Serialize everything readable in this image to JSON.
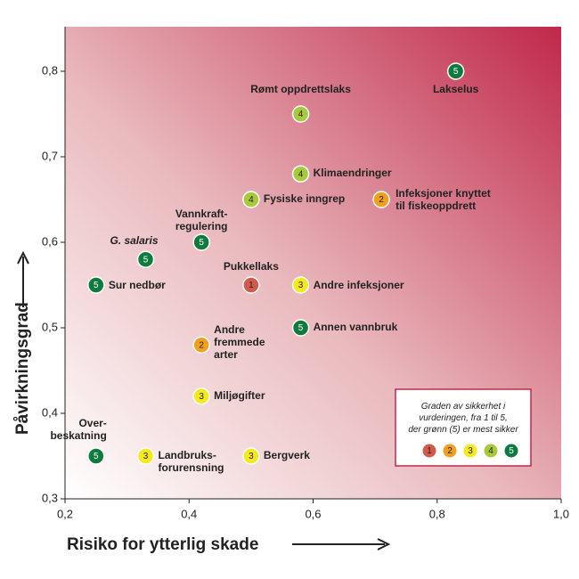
{
  "chart_data": {
    "type": "scatter",
    "x_label": "Risiko for ytterlig skade",
    "y_label": "Påvirkningsgrad",
    "xlim": [
      0.2,
      1.0
    ],
    "ylim": [
      0.3,
      0.85
    ],
    "xticks": [
      {
        "value": 0.2,
        "label": "0,2"
      },
      {
        "value": 0.4,
        "label": "0,4"
      },
      {
        "value": 0.6,
        "label": "0,6"
      },
      {
        "value": 0.8,
        "label": "0,8"
      },
      {
        "value": 1.0,
        "label": "1,0"
      }
    ],
    "yticks": [
      {
        "value": 0.3,
        "label": "0,3"
      },
      {
        "value": 0.4,
        "label": "0,4"
      },
      {
        "value": 0.5,
        "label": "0,5"
      },
      {
        "value": 0.6,
        "label": "0,6"
      },
      {
        "value": 0.7,
        "label": "0,7"
      },
      {
        "value": 0.8,
        "label": "0,8"
      }
    ],
    "points": [
      {
        "label": "Lakselus",
        "x": 0.83,
        "y": 0.8,
        "certainty": 5
      },
      {
        "label": "Rømt oppdrettslaks",
        "x": 0.58,
        "y": 0.75,
        "certainty": 4
      },
      {
        "label": "Klimaendringer",
        "x": 0.58,
        "y": 0.68,
        "certainty": 4
      },
      {
        "label": "Fysiske inngrep",
        "x": 0.5,
        "y": 0.65,
        "certainty": 4
      },
      {
        "label": "Infeksjoner knyttet\ntil fiskeoppdrett",
        "x": 0.71,
        "y": 0.65,
        "certainty": 2
      },
      {
        "label": "Vannkraft-\nregulering",
        "x": 0.42,
        "y": 0.6,
        "certainty": 5
      },
      {
        "label": "G. salaris",
        "x": 0.33,
        "y": 0.58,
        "certainty": 5
      },
      {
        "label": "Sur nedbør",
        "x": 0.25,
        "y": 0.55,
        "certainty": 5
      },
      {
        "label": "Pukkellaks",
        "x": 0.5,
        "y": 0.55,
        "certainty": 1
      },
      {
        "label": "Andre infeksjoner",
        "x": 0.58,
        "y": 0.55,
        "certainty": 3
      },
      {
        "label": "Annen vannbruk",
        "x": 0.58,
        "y": 0.5,
        "certainty": 5
      },
      {
        "label": "Andre\nfremmede\narter",
        "x": 0.42,
        "y": 0.48,
        "certainty": 2
      },
      {
        "label": "Miljøgifter",
        "x": 0.42,
        "y": 0.42,
        "certainty": 3
      },
      {
        "label": "Over-\nbeskatning",
        "x": 0.25,
        "y": 0.35,
        "certainty": 5
      },
      {
        "label": "Landbruks-\nforurensning",
        "x": 0.33,
        "y": 0.35,
        "certainty": 3
      },
      {
        "label": "Bergverk",
        "x": 0.5,
        "y": 0.35,
        "certainty": 3
      }
    ],
    "legend_title": "Graden av sikkerhet i\nvurderingen, fra 1 til 5,\nder grønn (5) er mest sikker",
    "certainty_scale": [
      {
        "value": 1,
        "color": "#d25a4c"
      },
      {
        "value": 2,
        "color": "#f0a01e"
      },
      {
        "value": 3,
        "color": "#f6e81e"
      },
      {
        "value": 4,
        "color": "#a9c93c"
      },
      {
        "value": 5,
        "color": "#0f7a3e"
      }
    ]
  }
}
